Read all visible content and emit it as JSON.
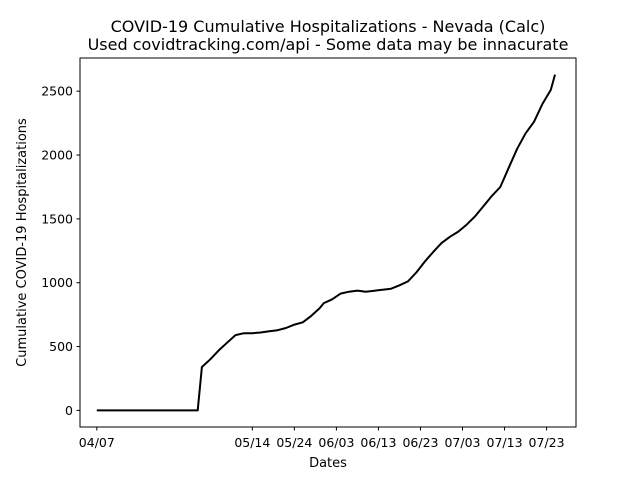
{
  "chart_data": {
    "type": "line",
    "title": "COVID-19 Cumulative Hospitalizations - Nevada (Calc)",
    "subtitle": "Used covidtracking.com/api - Some data may be innacurate",
    "xlabel": "Dates",
    "ylabel": "Cumulative COVID-19 Hospitalizations",
    "x_ticks": [
      "04/07",
      "05/14",
      "05/24",
      "06/03",
      "06/13",
      "06/23",
      "07/03",
      "07/13",
      "07/23"
    ],
    "x_tick_dates": [
      "2020-04-07",
      "2020-05-14",
      "2020-05-24",
      "2020-06-03",
      "2020-06-13",
      "2020-06-23",
      "2020-07-03",
      "2020-07-13",
      "2020-07-23"
    ],
    "xlim": [
      "2020-04-03",
      "2020-07-30"
    ],
    "y_ticks": [
      0,
      500,
      1000,
      1500,
      2000,
      2500
    ],
    "ylim": [
      -130,
      2760
    ],
    "grid": false,
    "line_color": "#000000",
    "series": [
      {
        "x": [
          "2020-04-07",
          "2020-04-13",
          "2020-05-01",
          "2020-05-02",
          "2020-05-04",
          "2020-05-06",
          "2020-05-08",
          "2020-05-10",
          "2020-05-12",
          "2020-05-14",
          "2020-05-16",
          "2020-05-18",
          "2020-05-20",
          "2020-05-22",
          "2020-05-24",
          "2020-05-26",
          "2020-05-28",
          "2020-05-30",
          "2020-05-31",
          "2020-06-02",
          "2020-06-04",
          "2020-06-06",
          "2020-06-08",
          "2020-06-10",
          "2020-06-12",
          "2020-06-14",
          "2020-06-16",
          "2020-06-18",
          "2020-06-20",
          "2020-06-22",
          "2020-06-24",
          "2020-06-26",
          "2020-06-28",
          "2020-06-30",
          "2020-07-02",
          "2020-07-04",
          "2020-07-06",
          "2020-07-08",
          "2020-07-10",
          "2020-07-12",
          "2020-07-14",
          "2020-07-16",
          "2020-07-18",
          "2020-07-20",
          "2020-07-22",
          "2020-07-24",
          "2020-07-25"
        ],
        "values": [
          0,
          0,
          0,
          340,
          400,
          470,
          530,
          590,
          605,
          605,
          610,
          620,
          628,
          645,
          672,
          690,
          740,
          800,
          840,
          870,
          915,
          930,
          938,
          930,
          937,
          945,
          953,
          980,
          1010,
          1080,
          1165,
          1240,
          1310,
          1360,
          1400,
          1455,
          1520,
          1600,
          1680,
          1750,
          1900,
          2050,
          2170,
          2260,
          2400,
          2510,
          2630
        ]
      }
    ]
  }
}
